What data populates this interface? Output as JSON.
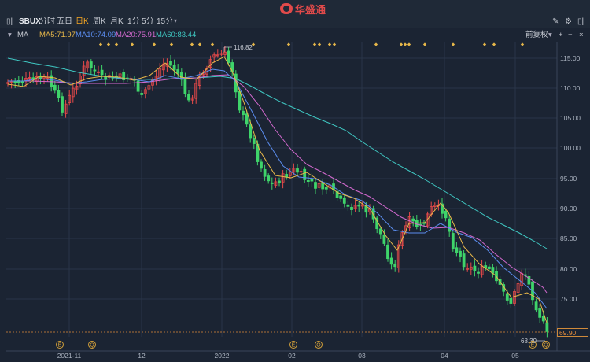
{
  "toolbar": {
    "symbol": "SBUX",
    "timeframes": [
      "分时",
      "五日",
      "日K",
      "周K",
      "月K",
      "1分",
      "5分",
      "15分"
    ],
    "active_timeframe": "日K",
    "brand": "华盛通",
    "right_label": "前复权"
  },
  "ma_bar": {
    "label": "MA",
    "ma5": "MA5:71.97",
    "ma10": "MA10:74.09",
    "ma20": "MA20:75.91",
    "ma60": "MA60:83.44",
    "colors": {
      "ma5": "#e8b84a",
      "ma10": "#5b8def",
      "ma20": "#d46ad0",
      "ma60": "#3fc7c2"
    }
  },
  "chart_data": {
    "type": "candlestick",
    "symbol": "SBUX",
    "y_ticks": [
      "115.00",
      "110.00",
      "105.00",
      "100.00",
      "95.00",
      "90.00",
      "85.00",
      "80.00",
      "75.00"
    ],
    "x_ticks": [
      "2021-11",
      "12",
      "2022",
      "02",
      "03",
      "04",
      "05"
    ],
    "high_label": "116.82",
    "low_label": "68.39",
    "current_price": "69.90",
    "event_markers": [
      "E",
      "Q",
      "E",
      "Q",
      "E",
      "Q"
    ],
    "colors": {
      "up": "#e84a4a",
      "down": "#3fd46a",
      "current_line": "#e08a3a",
      "grid": "#2a3548"
    }
  }
}
